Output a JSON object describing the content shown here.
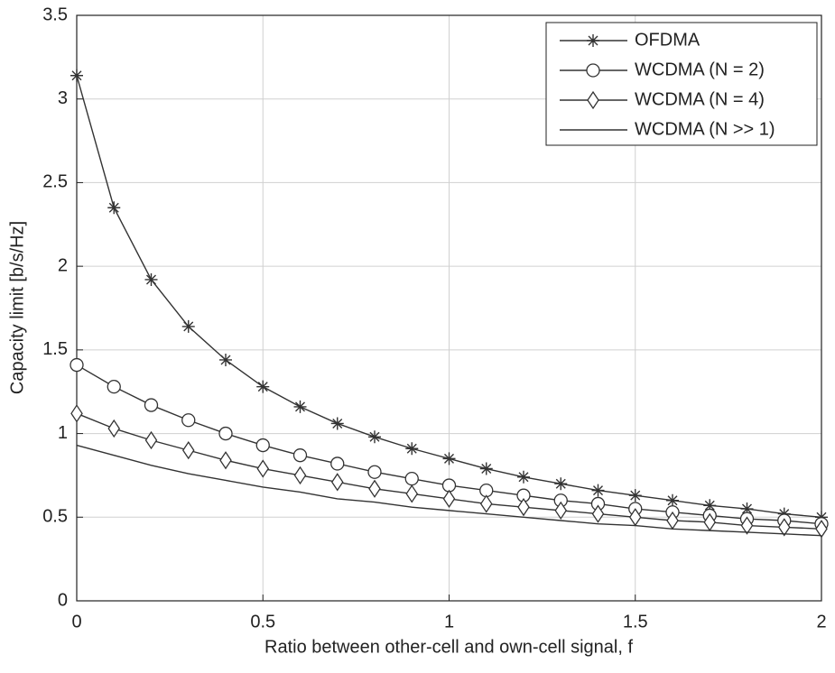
{
  "chart_data": {
    "type": "line",
    "xlabel": "Ratio between other-cell and own-cell signal, f",
    "ylabel": "Capacity limit [b/s/Hz]",
    "x": [
      0,
      0.1,
      0.2,
      0.3,
      0.4,
      0.5,
      0.6,
      0.7,
      0.8,
      0.9,
      1,
      1.1,
      1.2,
      1.3,
      1.4,
      1.5,
      1.6,
      1.7,
      1.8,
      1.9,
      2
    ],
    "series": [
      {
        "name": "OFDMA",
        "color": "#333333",
        "marker": "star",
        "values": [
          3.14,
          2.35,
          1.92,
          1.64,
          1.44,
          1.28,
          1.16,
          1.06,
          0.98,
          0.91,
          0.85,
          0.79,
          0.74,
          0.7,
          0.66,
          0.63,
          0.6,
          0.57,
          0.55,
          0.52,
          0.5
        ]
      },
      {
        "name": "WCDMA (N = 2)",
        "color": "#333333",
        "marker": "circle",
        "values": [
          1.41,
          1.28,
          1.17,
          1.08,
          1.0,
          0.93,
          0.87,
          0.82,
          0.77,
          0.73,
          0.69,
          0.66,
          0.63,
          0.6,
          0.58,
          0.55,
          0.53,
          0.51,
          0.49,
          0.48,
          0.46
        ]
      },
      {
        "name": "WCDMA (N = 4)",
        "color": "#333333",
        "marker": "diamond",
        "values": [
          1.12,
          1.03,
          0.96,
          0.9,
          0.84,
          0.79,
          0.75,
          0.71,
          0.67,
          0.64,
          0.61,
          0.58,
          0.56,
          0.54,
          0.52,
          0.5,
          0.48,
          0.47,
          0.45,
          0.44,
          0.43
        ]
      },
      {
        "name": "WCDMA (N >> 1)",
        "color": "#333333",
        "marker": "none",
        "values": [
          0.93,
          0.87,
          0.81,
          0.76,
          0.72,
          0.68,
          0.65,
          0.61,
          0.59,
          0.56,
          0.54,
          0.52,
          0.5,
          0.48,
          0.46,
          0.45,
          0.43,
          0.42,
          0.41,
          0.4,
          0.39
        ]
      }
    ],
    "xlim": [
      0,
      2
    ],
    "xticks": [
      0,
      0.5,
      1,
      1.5,
      2
    ],
    "ylim": [
      0,
      3.5
    ],
    "yticks": [
      0,
      0.5,
      1,
      1.5,
      2,
      2.5,
      3,
      3.5
    ],
    "grid": true,
    "legend": "upper right"
  }
}
